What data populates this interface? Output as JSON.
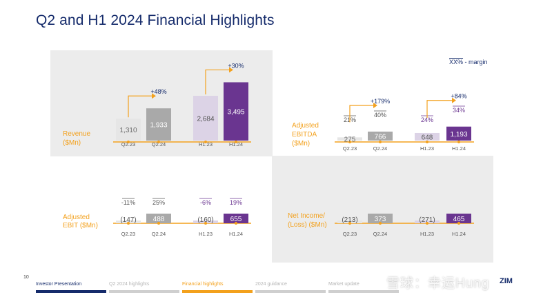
{
  "title": "Q2 and H1 2024 Financial Highlights",
  "legend": {
    "box": "XX%",
    "text": " - margin"
  },
  "colors": {
    "q223": "#e6e6e6",
    "q224": "#a9a9a9",
    "h123": "#dcd3e6",
    "h124": "#6a3590",
    "orange": "#f3a11d",
    "navy": "#152b6b",
    "purple": "#6a3590",
    "panel": "#ececec"
  },
  "chart_data": [
    {
      "type": "bar",
      "id": "revenue",
      "label": [
        "Revenue",
        "($Mn)"
      ],
      "categories": [
        "Q2.23",
        "Q2.24",
        "H1.23",
        "H1.24"
      ],
      "values": [
        1310,
        1933,
        2684,
        3495
      ],
      "value_labels": [
        "1,310",
        "1,933",
        "2,684",
        "3,495"
      ],
      "growth": [
        "+48%",
        "+30%"
      ],
      "margins": null
    },
    {
      "type": "bar",
      "id": "ebitda",
      "label": [
        "Adjusted",
        "EBITDA",
        "($Mn)"
      ],
      "categories": [
        "Q2.23",
        "Q2.24",
        "H1.23",
        "H1.24"
      ],
      "values": [
        275,
        766,
        648,
        1193
      ],
      "value_labels": [
        "275",
        "766",
        "648",
        "1,193"
      ],
      "growth": [
        "+179%",
        "+84%"
      ],
      "margins": [
        "21%",
        "40%",
        "24%",
        "34%"
      ]
    },
    {
      "type": "bar",
      "id": "ebit",
      "label": [
        "Adjusted",
        "EBIT ($Mn)"
      ],
      "categories": [
        "Q2.23",
        "Q2.24",
        "H1.23",
        "H1.24"
      ],
      "values": [
        -147,
        488,
        -160,
        655
      ],
      "value_labels": [
        "(147)",
        "488",
        "(160)",
        "655"
      ],
      "growth": null,
      "margins": [
        "-11%",
        "25%",
        "-6%",
        "19%"
      ]
    },
    {
      "type": "bar",
      "id": "netincome",
      "label": [
        "Net Income/",
        "(Loss) ($Mn)"
      ],
      "categories": [
        "Q2.23",
        "Q2.24",
        "H1.23",
        "H1.24"
      ],
      "values": [
        -213,
        373,
        -271,
        465
      ],
      "value_labels": [
        "(213)",
        "373",
        "(271)",
        "465"
      ],
      "growth": null,
      "margins": null
    }
  ],
  "footer": {
    "page": "10",
    "tabs": [
      "Investor Presentation",
      "Q2 2024 highlights",
      "Financial highlights",
      "2024 guidance",
      "Market update"
    ],
    "logo": "ZIM",
    "watermark": "雪球：幸运Hung"
  }
}
